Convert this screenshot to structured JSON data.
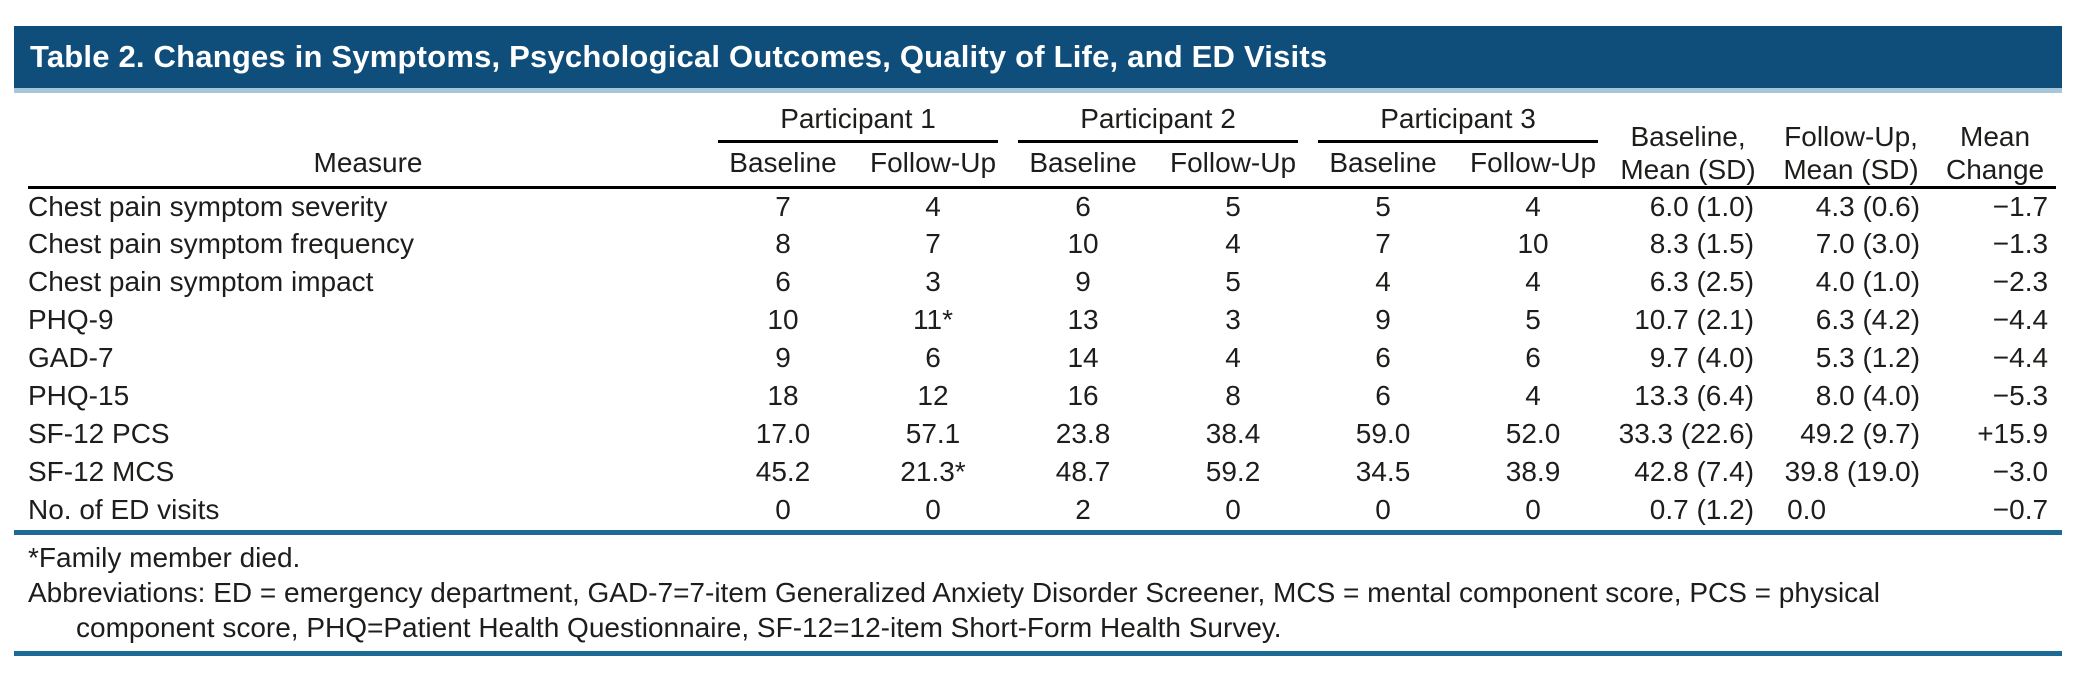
{
  "title": "Table 2. Changes in Symptoms, Psychological Outcomes, Quality of Life, and ED Visits",
  "colors": {
    "title_bar": "#0f4d7a",
    "light_rule": "#a7c6d9",
    "blue_rule": "#1c6b96",
    "text": "#1d1d1b"
  },
  "table": {
    "measure_header": "Measure",
    "group_headers": [
      "Participant 1",
      "Participant 2",
      "Participant 3"
    ],
    "sub_headers": {
      "baseline": "Baseline",
      "followup": "Follow-Up"
    },
    "stat_headers": {
      "baseline_mean": {
        "line1": "Baseline,",
        "line2": "Mean (SD)"
      },
      "followup_mean": {
        "line1": "Follow-Up,",
        "line2": "Mean (SD)"
      },
      "mean_change": {
        "line1": "Mean",
        "line2": "Change"
      }
    },
    "rows": [
      {
        "measure": "Chest pain symptom severity",
        "p1b": "7",
        "p1f": "4",
        "p2b": "6",
        "p2f": "5",
        "p3b": "5",
        "p3f": "4",
        "bmean": "6.0 (1.0)",
        "fmean": "4.3 (0.6)",
        "change": "−1.7"
      },
      {
        "measure": "Chest pain symptom frequency",
        "p1b": "8",
        "p1f": "7",
        "p2b": "10",
        "p2f": "4",
        "p3b": "7",
        "p3f": "10",
        "bmean": "8.3 (1.5)",
        "fmean": "7.0 (3.0)",
        "change": "−1.3"
      },
      {
        "measure": "Chest pain symptom impact",
        "p1b": "6",
        "p1f": "3",
        "p2b": "9",
        "p2f": "5",
        "p3b": "4",
        "p3f": "4",
        "bmean": "6.3 (2.5)",
        "fmean": "4.0 (1.0)",
        "change": "−2.3"
      },
      {
        "measure": "PHQ-9",
        "p1b": "10",
        "p1f": "11*",
        "p2b": "13",
        "p2f": "3",
        "p3b": "9",
        "p3f": "5",
        "bmean": "10.7 (2.1)",
        "fmean": "6.3 (4.2)",
        "change": "−4.4"
      },
      {
        "measure": "GAD-7",
        "p1b": "9",
        "p1f": "6",
        "p2b": "14",
        "p2f": "4",
        "p3b": "6",
        "p3f": "6",
        "bmean": "9.7 (4.0)",
        "fmean": "5.3 (1.2)",
        "change": "−4.4"
      },
      {
        "measure": "PHQ-15",
        "p1b": "18",
        "p1f": "12",
        "p2b": "16",
        "p2f": "8",
        "p3b": "6",
        "p3f": "4",
        "bmean": "13.3 (6.4)",
        "fmean": "8.0 (4.0)",
        "change": "−5.3"
      },
      {
        "measure": "SF-12 PCS",
        "p1b": "17.0",
        "p1f": "57.1",
        "p2b": "23.8",
        "p2f": "38.4",
        "p3b": "59.0",
        "p3f": "52.0",
        "bmean": "33.3 (22.6)",
        "fmean": "49.2 (9.7)",
        "change": "+15.9"
      },
      {
        "measure": "SF-12 MCS",
        "p1b": "45.2",
        "p1f": "21.3*",
        "p2b": "48.7",
        "p2f": "59.2",
        "p3b": "34.5",
        "p3f": "38.9",
        "bmean": "42.8 (7.4)",
        "fmean": "39.8 (19.0)",
        "change": "−3.0"
      },
      {
        "measure": "No. of ED visits",
        "p1b": "0",
        "p1f": "0",
        "p2b": "2",
        "p2f": "0",
        "p3b": "0",
        "p3f": "0",
        "bmean": "0.7 (1.2)",
        "fmean": "0.0",
        "change": "−0.7"
      }
    ]
  },
  "footnotes": {
    "asterisk": "*Family member died.",
    "abbreviations_line1": "Abbreviations: ED = emergency department, GAD-7=7-item Generalized Anxiety Disorder Screener, MCS = mental component score, PCS = physical",
    "abbreviations_line2": "component score, PHQ=Patient Health Questionnaire, SF-12=12-item Short-Form Health Survey."
  }
}
